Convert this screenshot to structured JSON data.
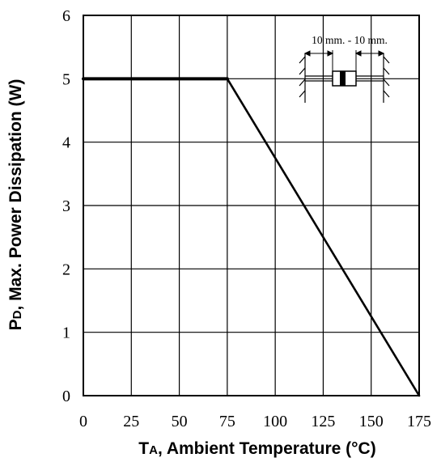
{
  "chart_data": {
    "type": "line",
    "title": "",
    "xlabel": "TA, Ambient Temperature (°C)",
    "xlabel_main": "T",
    "xlabel_sub": "A",
    "xlabel_rest": ", Ambient Temperature (°C)",
    "ylabel": "PD, Max. Power Dissipation (W)",
    "ylabel_main": "P",
    "ylabel_sub": "D",
    "ylabel_rest": ", Max. Power Dissipation (W)",
    "xlim": [
      0,
      175
    ],
    "ylim": [
      0,
      6
    ],
    "xticks": [
      0,
      25,
      50,
      75,
      100,
      125,
      150,
      175
    ],
    "yticks": [
      0,
      1,
      2,
      3,
      4,
      5,
      6
    ],
    "xtick_labels": [
      "0",
      "25",
      "50",
      "75",
      "100",
      "125",
      "150",
      "175"
    ],
    "ytick_labels": [
      "0",
      "1",
      "2",
      "3",
      "4",
      "5",
      "6"
    ],
    "grid": true,
    "series": [
      {
        "x": [
          0,
          75,
          175
        ],
        "y": [
          5,
          5,
          0
        ]
      }
    ],
    "annotations": [
      {
        "text": "10 mm. - 10 mm.",
        "position": "top-right"
      }
    ]
  }
}
